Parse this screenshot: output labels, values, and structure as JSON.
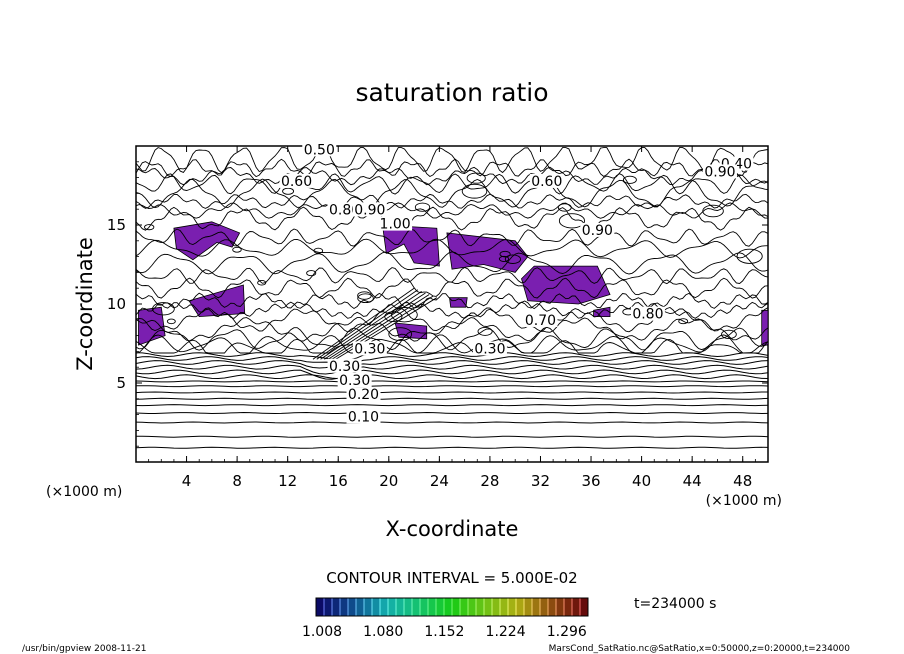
{
  "chart_data": {
    "type": "heatmap",
    "title": "saturation ratio",
    "xlabel": "X-coordinate",
    "ylabel": "Z-coordinate",
    "x_unit": "(×1000 m)",
    "z_unit": "(×1000 m)",
    "xlim": [
      0,
      50
    ],
    "ylim": [
      0,
      20
    ],
    "x_ticks": [
      4,
      8,
      12,
      16,
      20,
      24,
      28,
      32,
      36,
      40,
      44,
      48
    ],
    "y_ticks": [
      5,
      10,
      15
    ],
    "contour_interval_text": "CONTOUR INTERVAL = 5.000E-02",
    "time_text": "t=234000 s",
    "colorbar": {
      "tick_labels": [
        "1.008",
        "1.080",
        "1.152",
        "1.224",
        "1.296"
      ],
      "range": [
        1.008,
        1.296
      ]
    },
    "contour_labels": [
      {
        "text": "0.50",
        "x": 14.5,
        "z": 19.6
      },
      {
        "text": "0.60",
        "x": 12.7,
        "z": 17.6
      },
      {
        "text": "0.60",
        "x": 32.5,
        "z": 17.6
      },
      {
        "text": "0.40",
        "x": 47.5,
        "z": 18.7
      },
      {
        "text": "0.90",
        "x": 46.2,
        "z": 18.2
      },
      {
        "text": "0.80",
        "x": 16.5,
        "z": 15.8
      },
      {
        "text": "0.90",
        "x": 18.5,
        "z": 15.8
      },
      {
        "text": "1.00",
        "x": 20.5,
        "z": 14.9
      },
      {
        "text": "0.90",
        "x": 36.5,
        "z": 14.5
      },
      {
        "text": "0.80",
        "x": 40.5,
        "z": 9.2
      },
      {
        "text": "0.70",
        "x": 32.0,
        "z": 8.8
      },
      {
        "text": "0.30",
        "x": 28.0,
        "z": 7.0
      },
      {
        "text": "0.30",
        "x": 18.5,
        "z": 7.0
      },
      {
        "text": "0.30",
        "x": 16.5,
        "z": 5.9
      },
      {
        "text": "0.30",
        "x": 17.3,
        "z": 5.0
      },
      {
        "text": "0.20",
        "x": 18.0,
        "z": 4.1
      },
      {
        "text": "0.10",
        "x": 18.0,
        "z": 2.7
      }
    ],
    "supersaturated_regions_color": "#7a1fb0"
  },
  "footer": {
    "left": "/usr/bin/gpview   2008-11-21",
    "right": "MarsCond_SatRatio.nc@SatRatio,x=0:50000,z=0:20000,t=234000"
  }
}
